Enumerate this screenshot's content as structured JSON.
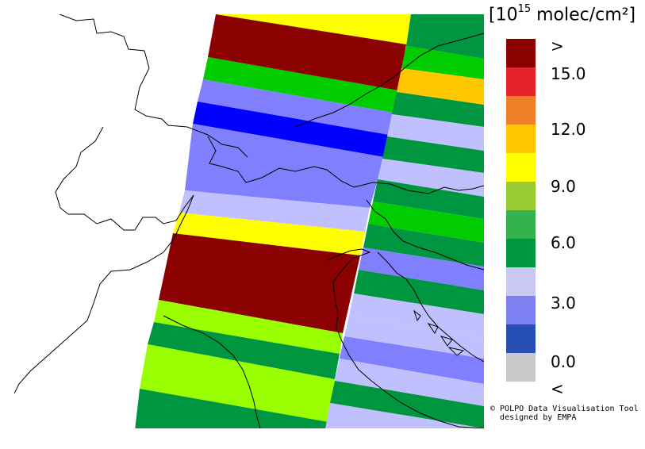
{
  "colorbar": {
    "unit": {
      "prefix": "[10",
      "exponent": "15",
      "suffix": " molec/cm²]"
    },
    "colors": [
      "#8b0000",
      "#e8222a",
      "#f07f2a",
      "#ffc800",
      "#ffff00",
      "#99cc33",
      "#33b34d",
      "#009640",
      "#c8c8f0",
      "#7d80f0",
      "#2850b4",
      "#c8c8c8"
    ],
    "ticks": [
      ">",
      "15.0",
      "12.0",
      "9.0",
      "6.0",
      "3.0",
      "0.0",
      "<"
    ]
  },
  "credit": {
    "line1": "© POLPO Data Visualisation Tool",
    "line2": "designed by EMPA"
  },
  "swath_colors": {
    "darkred": "#8b0000",
    "orange": "#f58220",
    "gold": "#ffc800",
    "yellow": "#ffff00",
    "lime": "#99ff00",
    "green": "#00cc00",
    "darkgreen": "#009640",
    "periwinkle": "#8080ff",
    "lavender": "#c0c0ff",
    "blue": "#0000ff"
  }
}
